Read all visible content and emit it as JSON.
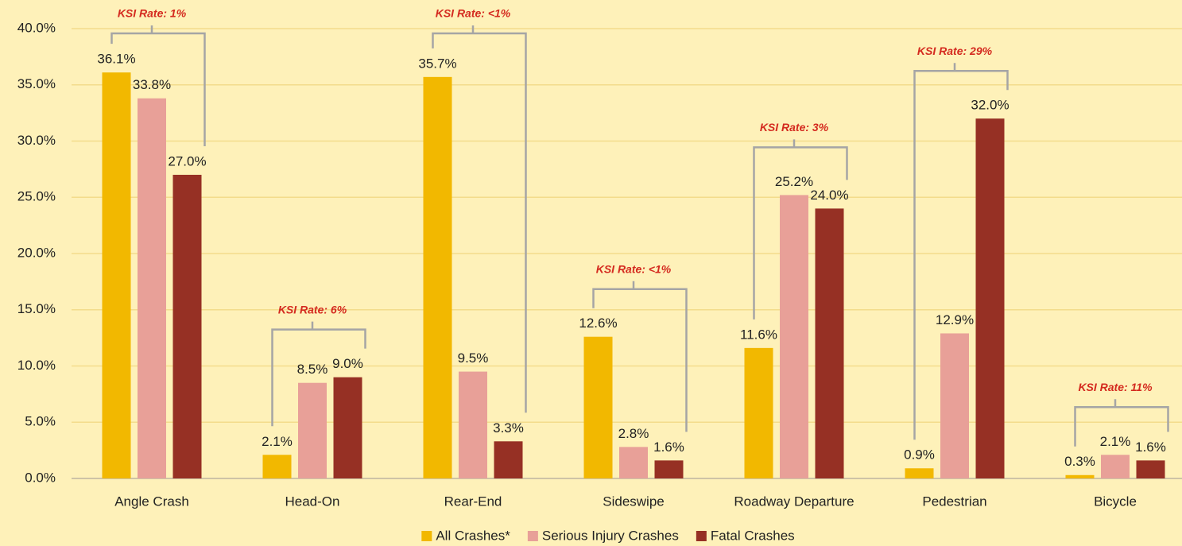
{
  "chart_data": {
    "type": "bar",
    "categories": [
      "Angle Crash",
      "Head-On",
      "Rear-End",
      "Sideswipe",
      "Roadway Departure",
      "Pedestrian",
      "Bicycle"
    ],
    "series": [
      {
        "name": "All Crashes*",
        "color": "#f2b800",
        "values": [
          36.1,
          2.1,
          35.7,
          12.6,
          11.6,
          0.9,
          0.3
        ],
        "value_labels": [
          "36.1%",
          "2.1%",
          "35.7%",
          "12.6%",
          "11.6%",
          "0.9%",
          "0.3%"
        ]
      },
      {
        "name": "Serious Injury Crashes",
        "color": "#e8a098",
        "values": [
          33.8,
          8.5,
          9.5,
          2.8,
          25.2,
          12.9,
          2.1
        ],
        "value_labels": [
          "33.8%",
          "8.5%",
          "9.5%",
          "2.8%",
          "25.2%",
          "12.9%",
          "2.1%"
        ]
      },
      {
        "name": "Fatal Crashes",
        "color": "#963024",
        "values": [
          27.0,
          9.0,
          3.3,
          1.6,
          24.0,
          32.0,
          1.6
        ],
        "value_labels": [
          "27.0%",
          "9.0%",
          "3.3%",
          "1.6%",
          "24.0%",
          "32.0%",
          "1.6%"
        ]
      }
    ],
    "annotations": [
      "KSI Rate: 1%",
      "KSI Rate: 6%",
      "KSI Rate: <1%",
      "KSI Rate: <1%",
      "KSI Rate: 3%",
      "KSI Rate: 29%",
      "KSI Rate: 11%"
    ],
    "ylim": [
      0,
      40
    ],
    "yticks": [
      {
        "value": 0,
        "label": "0.0%"
      },
      {
        "value": 5,
        "label": "5.0%"
      },
      {
        "value": 10,
        "label": "10.0%"
      },
      {
        "value": 15,
        "label": "15.0%"
      },
      {
        "value": 20,
        "label": "20.0%"
      },
      {
        "value": 25,
        "label": "25.0%"
      },
      {
        "value": 30,
        "label": "30.0%"
      },
      {
        "value": 35,
        "label": "35.0%"
      },
      {
        "value": 40,
        "label": "40.0%"
      }
    ],
    "grid": true,
    "legend": "bottom"
  }
}
